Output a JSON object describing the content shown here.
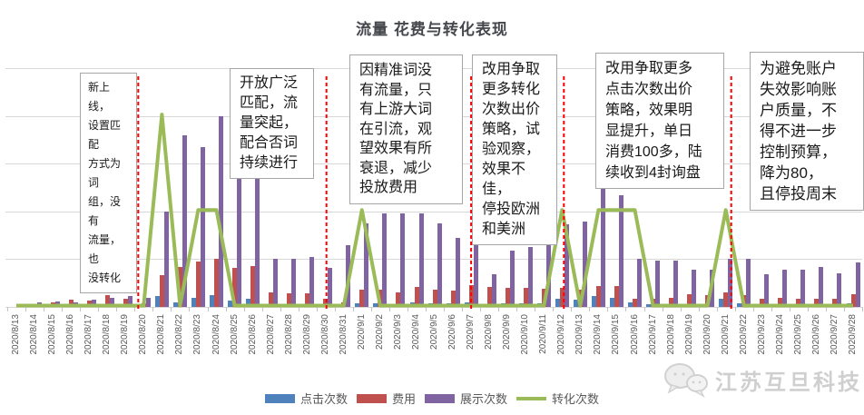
{
  "title": "流量 花费与转化表现",
  "annotations": [
    {
      "text": "新上线，\n设置匹配\n方式为词\n组，没有\n流量，也\n没转化"
    },
    {
      "text": "开放广泛\n匹配，流\n量突起，\n配合否词\n持续进行"
    },
    {
      "text": "因精准词没\n有流量，只\n有上游大词\n在引流，观\n望效果有所\n衰退，减少\n投放费用"
    },
    {
      "text": "改用争取\n更多转化\n次数出价\n策略，试\n验观察，\n效果不佳，\n停投欧洲\n和美洲"
    },
    {
      "text": "改用争取更多\n点击次数出价\n策略，效果明\n显提升，单日\n消费100多，陆\n续收到4封询盘"
    },
    {
      "text": "为避免账户\n失效影响账\n户质量，不\n得不进一步\n控制预算，\n降为80，\n且停投周末"
    }
  ],
  "legend": {
    "items": [
      {
        "key": "clicks",
        "label": "点击次数",
        "color": "#4F81BD",
        "marker": "rect"
      },
      {
        "key": "cost",
        "label": "费用",
        "color": "#C0504D",
        "marker": "rect"
      },
      {
        "key": "impressions",
        "label": "展示次数",
        "color": "#8064A2",
        "marker": "rect"
      },
      {
        "key": "conversions",
        "label": "转化次数",
        "color": "#9BBB59",
        "marker": "line"
      }
    ]
  },
  "watermark": {
    "text": "江苏互旦科技"
  },
  "chart_data": {
    "type": "bar",
    "title": "流量 花费与转化表现",
    "xlabel": "",
    "ylabel": "",
    "ylim": [
      0,
      5.2
    ],
    "y_gridlines": [
      0,
      1,
      2,
      3,
      4,
      5
    ],
    "grid": true,
    "legend_position": "bottom",
    "categories": [
      "2020/8/13",
      "2020/8/14",
      "2020/8/15",
      "2020/8/16",
      "2020/8/17",
      "2020/8/18",
      "2020/8/19",
      "2020/8/20",
      "2020/8/21",
      "2020/8/22",
      "2020/8/23",
      "2020/8/24",
      "2020/8/25",
      "2020/8/26",
      "2020/8/27",
      "2020/8/28",
      "2020/8/29",
      "2020/8/30",
      "2020/8/31",
      "2020/9/1",
      "2020/9/2",
      "2020/9/3",
      "2020/9/4",
      "2020/9/5",
      "2020/9/6",
      "2020/9/7",
      "2020/9/8",
      "2020/9/9",
      "2020/9/10",
      "2020/9/11",
      "2020/9/12",
      "2020/9/13",
      "2020/9/14",
      "2020/9/15",
      "2020/9/16",
      "2020/9/17",
      "2020/9/18",
      "2020/9/19",
      "2020/9/20",
      "2020/9/21",
      "2020/9/22",
      "2020/9/23",
      "2020/9/24",
      "2020/9/25",
      "2020/9/26",
      "2020/9/27",
      "2020/9/28"
    ],
    "series": [
      {
        "name": "点击次数",
        "key": "clicks",
        "type": "bar",
        "color": "#4F81BD",
        "values": [
          0,
          0.04,
          0.04,
          0.04,
          0.04,
          0.06,
          0.06,
          0.05,
          0.22,
          0.1,
          0.2,
          0.25,
          0.13,
          0.18,
          0.06,
          0.06,
          0.06,
          0.05,
          0.05,
          0.08,
          0.07,
          0.06,
          0.1,
          0.07,
          0.08,
          0.1,
          0.05,
          0.07,
          0.07,
          0.08,
          0.18,
          0.15,
          0.22,
          0.2,
          0.1,
          0.05,
          0.05,
          0.05,
          0.05,
          0.17,
          0.08,
          0.05,
          0.05,
          0.05,
          0.05,
          0.05,
          0.08
        ]
      },
      {
        "name": "费用",
        "key": "cost",
        "type": "bar",
        "color": "#C0504D",
        "values": [
          0,
          0.06,
          0.1,
          0.15,
          0.13,
          0.25,
          0.17,
          0.08,
          0.66,
          0.84,
          0.95,
          1.0,
          0.82,
          0.85,
          0.3,
          0.29,
          0.29,
          0.18,
          0.1,
          0.36,
          0.37,
          0.31,
          0.41,
          0.36,
          0.35,
          0.45,
          0.42,
          0.4,
          0.4,
          0.38,
          0.4,
          0.37,
          0.44,
          0.43,
          0.17,
          0.18,
          0.2,
          0.26,
          0.25,
          0.3,
          0.25,
          0.18,
          0.2,
          0.17,
          0.17,
          0.18,
          0.27
        ]
      },
      {
        "name": "展示次数",
        "key": "impressions",
        "type": "bar",
        "color": "#8064A2",
        "values": [
          0,
          0.1,
          0.12,
          0.1,
          0.15,
          0.19,
          0.23,
          0.2,
          2.0,
          3.6,
          3.35,
          4.0,
          2.8,
          2.8,
          1.0,
          1.0,
          1.05,
          0.82,
          1.3,
          1.75,
          1.95,
          1.95,
          1.96,
          1.75,
          1.45,
          1.74,
          0.69,
          1.18,
          1.26,
          1.5,
          1.74,
          1.79,
          2.53,
          2.34,
          1.0,
          0.97,
          0.97,
          0.78,
          0.78,
          1.0,
          1.0,
          0.69,
          0.78,
          0.78,
          0.83,
          0.7,
          0.93
        ]
      },
      {
        "name": "转化次数",
        "key": "conversions",
        "type": "line",
        "color": "#9BBB59",
        "values": [
          0,
          0,
          0,
          0,
          0,
          0,
          0,
          0,
          4,
          0,
          2,
          2,
          0,
          0,
          0,
          0,
          0,
          0,
          0,
          2,
          0,
          0,
          0,
          0,
          0,
          0,
          0,
          0,
          0,
          0,
          2,
          0,
          2,
          2,
          2,
          0,
          0,
          0,
          0,
          2,
          0,
          0,
          0,
          0,
          0,
          0,
          0
        ]
      }
    ],
    "dividers": [
      {
        "near_date": "2020/8/20",
        "x_index": 6.7,
        "color": "#FF0000",
        "style": "dashed"
      },
      {
        "near_date": "2020/8/30",
        "x_index": 17.05,
        "color": "#FF0000",
        "style": "dashed"
      },
      {
        "near_date": "2020/9/7",
        "x_index": 25.0,
        "color": "#FF0000",
        "style": "dashed"
      },
      {
        "near_date": "2020/9/12",
        "x_index": 30.1,
        "color": "#FF0000",
        "style": "dashed"
      },
      {
        "near_date": "2020/9/21",
        "x_index": 39.3,
        "color": "#FF0000",
        "style": "dashed"
      }
    ]
  }
}
